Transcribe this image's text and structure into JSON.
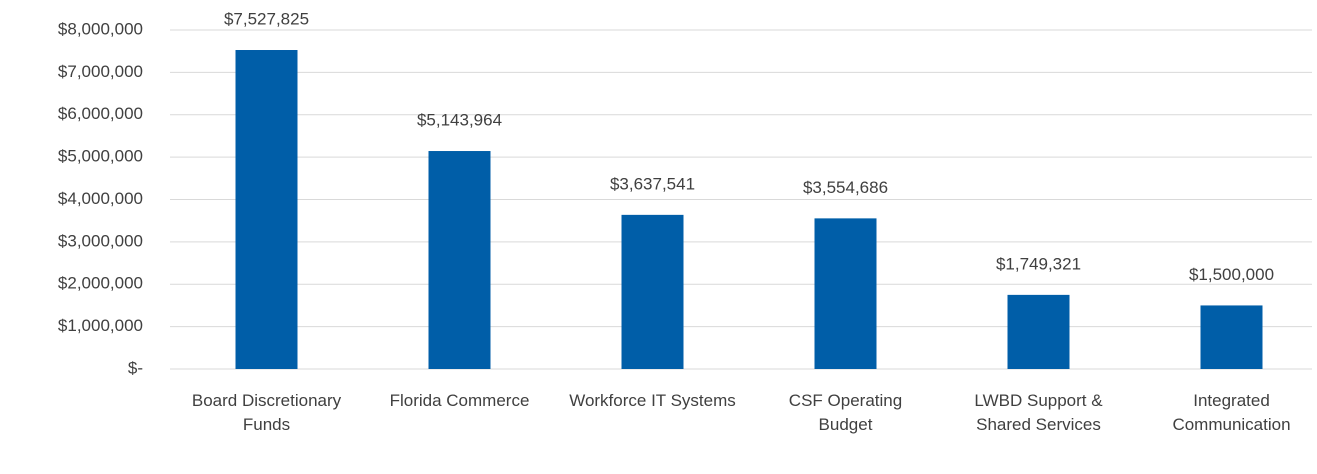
{
  "chart_data": {
    "type": "bar",
    "categories": [
      "Board Discretionary Funds",
      "Florida Commerce",
      "Workforce IT Systems",
      "CSF Operating Budget",
      "LWBD Support & Shared Services",
      "Integrated Communication"
    ],
    "values": [
      7527825,
      5143964,
      3637541,
      3554686,
      1749321,
      1500000
    ],
    "value_labels": [
      "$7,527,825",
      "$5,143,964",
      "$3,637,541",
      "$3,554,686",
      "$1,749,321",
      "$1,500,000"
    ],
    "color": "#005ea8",
    "ylim": [
      0,
      8000000
    ],
    "yticks": [
      {
        "value": 0,
        "label": "$-"
      },
      {
        "value": 1000000,
        "label": "$1,000,000"
      },
      {
        "value": 2000000,
        "label": "$2,000,000"
      },
      {
        "value": 3000000,
        "label": "$3,000,000"
      },
      {
        "value": 4000000,
        "label": "$4,000,000"
      },
      {
        "value": 5000000,
        "label": "$5,000,000"
      },
      {
        "value": 6000000,
        "label": "$6,000,000"
      },
      {
        "value": 7000000,
        "label": "$7,000,000"
      },
      {
        "value": 8000000,
        "label": "$8,000,000"
      }
    ],
    "grid": true
  }
}
